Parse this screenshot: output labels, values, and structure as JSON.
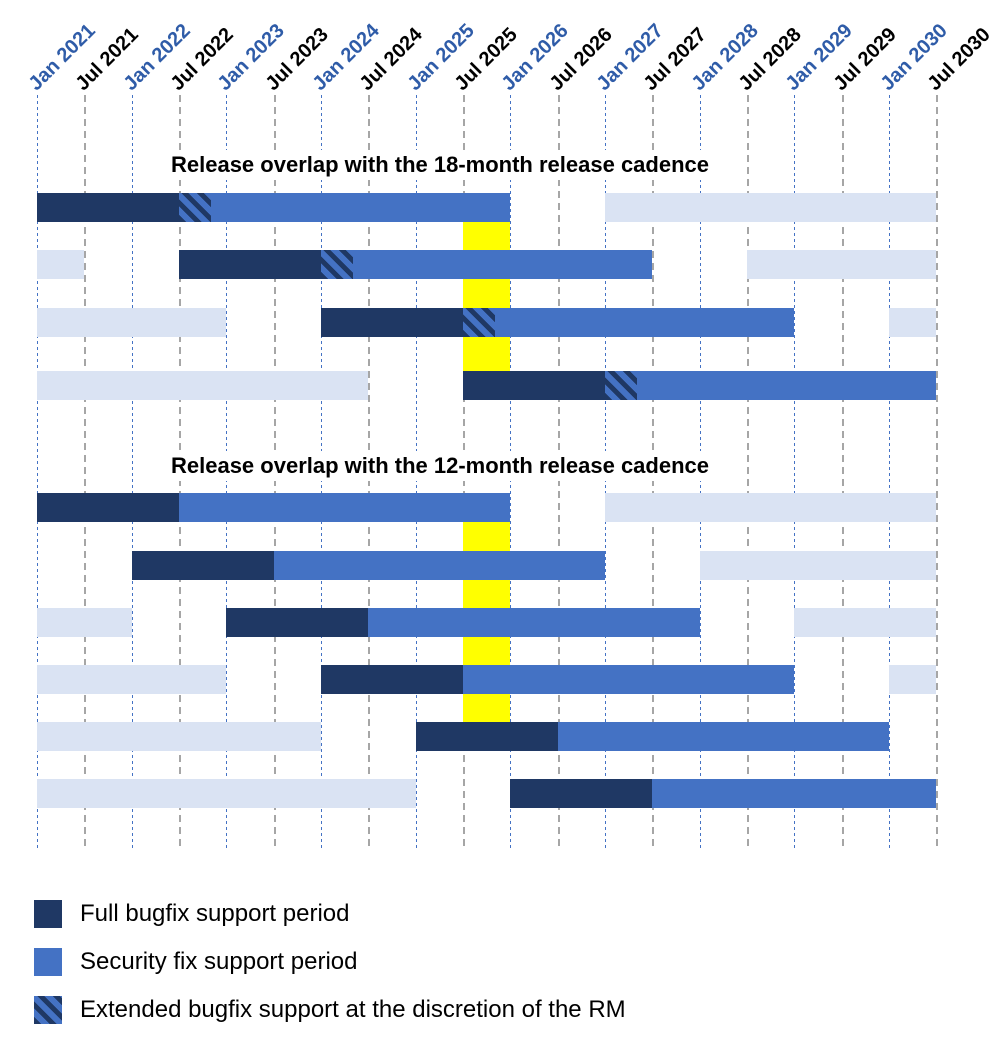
{
  "chart_data": {
    "type": "bar",
    "subtype": "gantt-release-timeline",
    "x_axis": {
      "ticks": [
        "Jan 2021",
        "Jul 2021",
        "Jan 2022",
        "Jul 2022",
        "Jan 2023",
        "Jul 2023",
        "Jan 2024",
        "Jul 2024",
        "Jan 2025",
        "Jul 2025",
        "Jan 2026",
        "Jul 2026",
        "Jan 2027",
        "Jul 2027",
        "Jan 2028",
        "Jul 2028",
        "Jan 2029",
        "Jul 2029",
        "Jan 2030",
        "Jul 2030"
      ],
      "tick_interval_months": 6,
      "jan_label_color": "#2F5CA8",
      "jul_label_color": "#000000",
      "jan_gridline_color": "#4472C4",
      "jul_gridline_color": "#A6A6A6"
    },
    "highlight_band": {
      "start": "Jul 2025",
      "end": "Jan 2026",
      "color": "#FFFF00"
    },
    "colors": {
      "full_bugfix": "#1F3864",
      "security_fix": "#4472C4",
      "adjacent_release": "#DAE3F3"
    },
    "sections": [
      {
        "title": "Release overlap with the 18-month release cadence",
        "highlight_rows": {
          "after_row": 0,
          "before_row": 3
        },
        "rows": [
          {
            "segments": [
              {
                "kind": "full_bugfix",
                "start": "Jan 2021",
                "end": "Jul 2022"
              },
              {
                "kind": "extended_bugfix",
                "start": "Jul 2022",
                "end": "Nov 2022"
              },
              {
                "kind": "security_fix",
                "start": "Nov 2022",
                "end": "Jan 2026"
              },
              {
                "kind": "adjacent_release",
                "start": "Jan 2027",
                "end": "Jul 2030"
              }
            ]
          },
          {
            "segments": [
              {
                "kind": "adjacent_release",
                "start": "Jan 2021",
                "end": "Jul 2021"
              },
              {
                "kind": "full_bugfix",
                "start": "Jul 2022",
                "end": "Jan 2024"
              },
              {
                "kind": "extended_bugfix",
                "start": "Jan 2024",
                "end": "May 2024"
              },
              {
                "kind": "security_fix",
                "start": "May 2024",
                "end": "Jul 2027"
              },
              {
                "kind": "adjacent_release",
                "start": "Jul 2028",
                "end": "Jul 2030"
              }
            ]
          },
          {
            "segments": [
              {
                "kind": "adjacent_release",
                "start": "Jan 2021",
                "end": "Jan 2023"
              },
              {
                "kind": "full_bugfix",
                "start": "Jan 2024",
                "end": "Jul 2025"
              },
              {
                "kind": "extended_bugfix",
                "start": "Jul 2025",
                "end": "Nov 2025"
              },
              {
                "kind": "security_fix",
                "start": "Nov 2025",
                "end": "Jan 2029"
              },
              {
                "kind": "adjacent_release",
                "start": "Jan 2030",
                "end": "Jul 2030"
              }
            ]
          },
          {
            "segments": [
              {
                "kind": "adjacent_release",
                "start": "Jan 2021",
                "end": "Jul 2024"
              },
              {
                "kind": "full_bugfix",
                "start": "Jul 2025",
                "end": "Jan 2027"
              },
              {
                "kind": "extended_bugfix",
                "start": "Jan 2027",
                "end": "May 2027"
              },
              {
                "kind": "security_fix",
                "start": "May 2027",
                "end": "Jul 2030"
              }
            ]
          }
        ]
      },
      {
        "title": "Release overlap with the 12-month release cadence",
        "highlight_rows": {
          "after_row": 0,
          "before_row": 4
        },
        "rows": [
          {
            "segments": [
              {
                "kind": "full_bugfix",
                "start": "Jan 2021",
                "end": "Jul 2022"
              },
              {
                "kind": "security_fix",
                "start": "Jul 2022",
                "end": "Jan 2026"
              },
              {
                "kind": "adjacent_release",
                "start": "Jan 2027",
                "end": "Jul 2030"
              }
            ]
          },
          {
            "segments": [
              {
                "kind": "full_bugfix",
                "start": "Jan 2022",
                "end": "Jul 2023"
              },
              {
                "kind": "security_fix",
                "start": "Jul 2023",
                "end": "Jan 2027"
              },
              {
                "kind": "adjacent_release",
                "start": "Jan 2028",
                "end": "Jul 2030"
              }
            ]
          },
          {
            "segments": [
              {
                "kind": "adjacent_release",
                "start": "Jan 2021",
                "end": "Jan 2022"
              },
              {
                "kind": "full_bugfix",
                "start": "Jan 2023",
                "end": "Jul 2024"
              },
              {
                "kind": "security_fix",
                "start": "Jul 2024",
                "end": "Jan 2028"
              },
              {
                "kind": "adjacent_release",
                "start": "Jan 2029",
                "end": "Jul 2030"
              }
            ]
          },
          {
            "segments": [
              {
                "kind": "adjacent_release",
                "start": "Jan 2021",
                "end": "Jan 2023"
              },
              {
                "kind": "full_bugfix",
                "start": "Jan 2024",
                "end": "Jul 2025"
              },
              {
                "kind": "security_fix",
                "start": "Jul 2025",
                "end": "Jan 2029"
              },
              {
                "kind": "adjacent_release",
                "start": "Jan 2030",
                "end": "Jul 2030"
              }
            ]
          },
          {
            "segments": [
              {
                "kind": "adjacent_release",
                "start": "Jan 2021",
                "end": "Jan 2024"
              },
              {
                "kind": "full_bugfix",
                "start": "Jan 2025",
                "end": "Jul 2026"
              },
              {
                "kind": "security_fix",
                "start": "Jul 2026",
                "end": "Jan 2030"
              }
            ]
          },
          {
            "segments": [
              {
                "kind": "adjacent_release",
                "start": "Jan 2021",
                "end": "Jan 2025"
              },
              {
                "kind": "full_bugfix",
                "start": "Jan 2026",
                "end": "Jul 2027"
              },
              {
                "kind": "security_fix",
                "start": "Jul 2027",
                "end": "Jul 2030"
              }
            ]
          }
        ]
      }
    ],
    "legend": [
      {
        "swatch": "full_bugfix",
        "label": "Full bugfix support period"
      },
      {
        "swatch": "security_fix",
        "label": "Security fix support period"
      },
      {
        "swatch": "extended_bugfix",
        "label": "Extended bugfix support at the discretion of the RM"
      }
    ]
  }
}
